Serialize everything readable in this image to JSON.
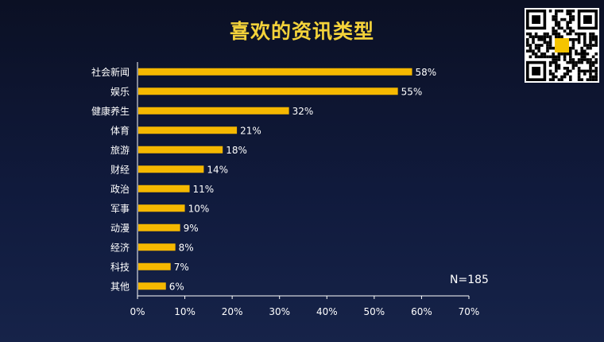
{
  "title": "喜欢的资讯类型",
  "note": "N=185",
  "colors": {
    "bar": "#f5b800",
    "text": "#ffffff",
    "title": "#f3d23a",
    "axis": "#ffffff"
  },
  "chart_data": {
    "type": "bar",
    "orientation": "horizontal",
    "title": "喜欢的资讯类型",
    "categories": [
      "社会新闻",
      "娱乐",
      "健康养生",
      "体育",
      "旅游",
      "财经",
      "政治",
      "军事",
      "动漫",
      "经济",
      "科技",
      "其他"
    ],
    "values": [
      58,
      55,
      32,
      21,
      18,
      14,
      11,
      10,
      9,
      8,
      7,
      6
    ],
    "value_labels": [
      "58%",
      "55%",
      "32%",
      "21%",
      "18%",
      "14%",
      "11%",
      "10%",
      "9%",
      "8%",
      "7%",
      "6%"
    ],
    "xlim": [
      0,
      70
    ],
    "xticks": [
      "0%",
      "10%",
      "20%",
      "30%",
      "40%",
      "50%",
      "60%",
      "70%"
    ],
    "grid": false,
    "legend": "none"
  }
}
